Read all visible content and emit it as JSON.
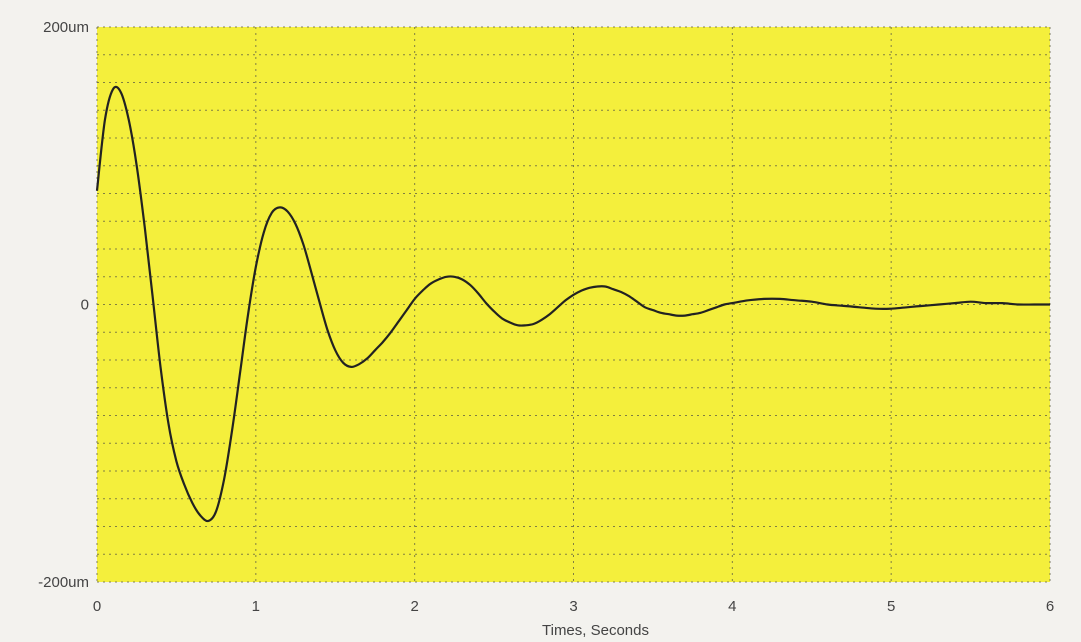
{
  "chart_data": {
    "type": "line",
    "title": "",
    "xlabel": "Times, Seconds",
    "ylabel": "",
    "xlim": [
      0,
      6
    ],
    "ylim": [
      -200,
      200
    ],
    "xticks": [
      "0",
      "1",
      "2",
      "3",
      "4",
      "5",
      "6"
    ],
    "yticks": [
      {
        "value": 200,
        "label": "200um"
      },
      {
        "value": 0,
        "label": "0"
      },
      {
        "value": -200,
        "label": "-200um"
      }
    ],
    "grid": true,
    "legend": "none",
    "colors": {
      "plot_bg": "#f4ef3c",
      "line": "#222222",
      "grid": "#5a5a44"
    },
    "series": [
      {
        "x": [
          0,
          0.05,
          0.1,
          0.15,
          0.2,
          0.25,
          0.3,
          0.35,
          0.4,
          0.45,
          0.5,
          0.55,
          0.6,
          0.65,
          0.7,
          0.75,
          0.8,
          0.85,
          0.9,
          0.95,
          1.0,
          1.05,
          1.1,
          1.15,
          1.2,
          1.25,
          1.3,
          1.35,
          1.4,
          1.45,
          1.5,
          1.55,
          1.6,
          1.65,
          1.7,
          1.75,
          1.8,
          1.85,
          1.9,
          1.95,
          2.0,
          2.05,
          2.1,
          2.15,
          2.2,
          2.25,
          2.3,
          2.35,
          2.4,
          2.45,
          2.5,
          2.55,
          2.6,
          2.65,
          2.7,
          2.75,
          2.8,
          2.85,
          2.9,
          2.95,
          3.0,
          3.05,
          3.1,
          3.15,
          3.2,
          3.25,
          3.3,
          3.35,
          3.4,
          3.45,
          3.5,
          3.55,
          3.6,
          3.65,
          3.7,
          3.75,
          3.8,
          3.85,
          3.9,
          3.95,
          4.0,
          4.1,
          4.2,
          4.3,
          4.4,
          4.5,
          4.6,
          4.7,
          4.8,
          4.9,
          5.0,
          5.1,
          5.2,
          5.3,
          5.4,
          5.5,
          5.6,
          5.7,
          5.8,
          5.9,
          6.0
        ],
        "values": [
          82,
          133,
          155,
          153,
          133,
          100,
          56,
          6,
          -45,
          -86,
          -113,
          -130,
          -143,
          -152,
          -156,
          -149,
          -126,
          -91,
          -50,
          -8,
          27,
          52,
          66,
          70,
          67,
          58,
          43,
          23,
          2,
          -18,
          -33,
          -42,
          -45,
          -43,
          -39,
          -33,
          -27,
          -20,
          -12,
          -4,
          4,
          10,
          15,
          18,
          20,
          20,
          18,
          14,
          8,
          1,
          -5,
          -10,
          -13,
          -15,
          -15,
          -14,
          -11,
          -7,
          -2,
          3,
          7,
          10,
          12,
          13,
          13,
          11,
          9,
          6,
          2,
          -2,
          -4,
          -6,
          -7,
          -8,
          -8,
          -7,
          -6,
          -4,
          -2,
          0,
          1,
          3,
          4,
          4,
          3,
          2,
          0,
          -1,
          -2,
          -3,
          -3,
          -2,
          -1,
          0,
          1,
          2,
          1,
          1,
          0,
          0,
          0
        ]
      }
    ]
  }
}
